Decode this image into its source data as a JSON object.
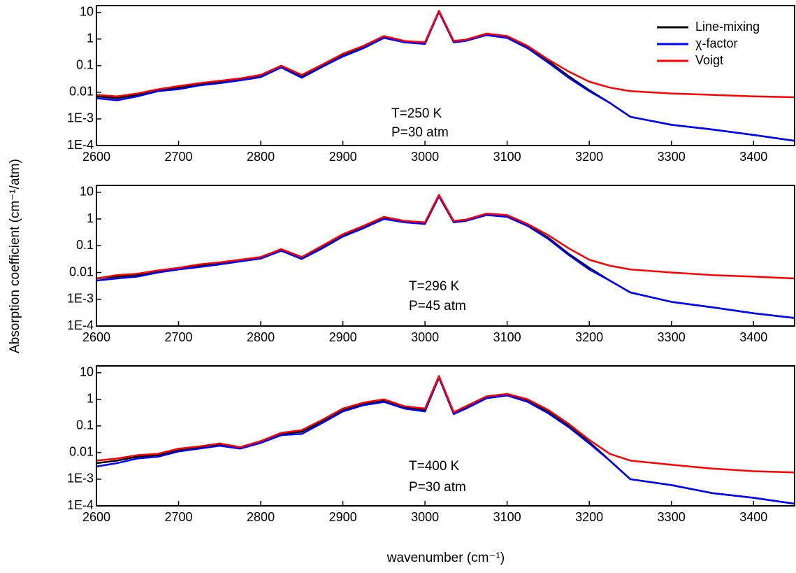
{
  "chart_data": [
    {
      "type": "line",
      "log_scale": true,
      "legend": "upper right",
      "ylabel": "Absorption coefficient (cm⁻¹/atm)",
      "annotations": [
        "T=250 K",
        "P=30 atm"
      ],
      "x": [
        2600,
        2625,
        2650,
        2675,
        2700,
        2725,
        2750,
        2775,
        2800,
        2825,
        2850,
        2875,
        2900,
        2925,
        2950,
        2975,
        3000,
        3017,
        3035,
        3050,
        3075,
        3100,
        3125,
        3150,
        3175,
        3200,
        3225,
        3250,
        3300,
        3350,
        3400,
        3450
      ],
      "xlim": [
        2600,
        3450
      ],
      "xticks": [
        2600,
        2700,
        2800,
        2900,
        3000,
        3100,
        3200,
        3300,
        3400
      ],
      "ylim": [
        0.0001,
        18
      ],
      "yticks": [
        {
          "value": 0.0001,
          "label": "1E-4"
        },
        {
          "value": 0.001,
          "label": "1E-3"
        },
        0.01,
        0.1,
        1,
        10
      ],
      "series": [
        {
          "name": "Line-mixing",
          "color": "#000000",
          "values": [
            0.007,
            0.006,
            0.008,
            0.012,
            0.015,
            0.02,
            0.025,
            0.03,
            0.04,
            0.09,
            0.04,
            0.1,
            0.25,
            0.5,
            1.2,
            0.8,
            0.7,
            11,
            0.8,
            0.9,
            1.5,
            1.2,
            0.5,
            0.15,
            0.04,
            0.012,
            0.004,
            0.0012,
            0.0006,
            0.0004,
            0.00025,
            0.00015
          ]
        },
        {
          "name": "χ-factor",
          "color": "#0000ff",
          "values": [
            0.006,
            0.005,
            0.007,
            0.011,
            0.013,
            0.018,
            0.022,
            0.028,
            0.037,
            0.085,
            0.035,
            0.09,
            0.22,
            0.45,
            1.1,
            0.75,
            0.65,
            10.5,
            0.75,
            0.85,
            1.4,
            1.1,
            0.45,
            0.13,
            0.035,
            0.011,
            0.004,
            0.0012,
            0.0006,
            0.0004,
            0.00025,
            0.00015
          ]
        },
        {
          "name": "Voigt",
          "color": "#ff0000",
          "values": [
            0.008,
            0.007,
            0.009,
            0.013,
            0.017,
            0.022,
            0.027,
            0.033,
            0.045,
            0.1,
            0.045,
            0.11,
            0.28,
            0.55,
            1.3,
            0.85,
            0.75,
            11.5,
            0.85,
            0.95,
            1.6,
            1.3,
            0.55,
            0.17,
            0.06,
            0.025,
            0.015,
            0.011,
            0.009,
            0.008,
            0.007,
            0.0065
          ]
        }
      ]
    },
    {
      "type": "line",
      "log_scale": true,
      "annotations": [
        "T=296 K",
        "P=45 atm"
      ],
      "x": [
        2600,
        2625,
        2650,
        2675,
        2700,
        2725,
        2750,
        2775,
        2800,
        2825,
        2850,
        2875,
        2900,
        2925,
        2950,
        2975,
        3000,
        3017,
        3035,
        3050,
        3075,
        3100,
        3125,
        3150,
        3175,
        3200,
        3225,
        3250,
        3300,
        3350,
        3400,
        3450
      ],
      "xlim": [
        2600,
        3450
      ],
      "xticks": [
        2600,
        2700,
        2800,
        2900,
        3000,
        3100,
        3200,
        3300,
        3400
      ],
      "ylim": [
        0.0001,
        18
      ],
      "yticks": [
        {
          "value": 0.0001,
          "label": "1E-4"
        },
        {
          "value": 0.001,
          "label": "1E-3"
        },
        0.01,
        0.1,
        1,
        10
      ],
      "series": [
        {
          "color": "#000000",
          "values": [
            0.006,
            0.007,
            0.008,
            0.011,
            0.014,
            0.018,
            0.022,
            0.028,
            0.035,
            0.07,
            0.035,
            0.09,
            0.25,
            0.5,
            1.1,
            0.8,
            0.7,
            7.5,
            0.8,
            0.9,
            1.5,
            1.3,
            0.6,
            0.2,
            0.05,
            0.015,
            0.005,
            0.0018,
            0.0008,
            0.0005,
            0.0003,
            0.0002
          ]
        },
        {
          "color": "#0000ff",
          "values": [
            0.005,
            0.006,
            0.007,
            0.01,
            0.013,
            0.016,
            0.02,
            0.026,
            0.033,
            0.065,
            0.032,
            0.08,
            0.22,
            0.45,
            1.0,
            0.75,
            0.65,
            7,
            0.75,
            0.85,
            1.4,
            1.2,
            0.55,
            0.18,
            0.045,
            0.013,
            0.005,
            0.0018,
            0.0008,
            0.0005,
            0.0003,
            0.0002
          ]
        },
        {
          "color": "#ff0000",
          "values": [
            0.006,
            0.008,
            0.009,
            0.012,
            0.015,
            0.02,
            0.024,
            0.03,
            0.038,
            0.075,
            0.038,
            0.1,
            0.27,
            0.55,
            1.2,
            0.85,
            0.75,
            8,
            0.85,
            0.95,
            1.6,
            1.4,
            0.65,
            0.25,
            0.08,
            0.03,
            0.018,
            0.013,
            0.01,
            0.008,
            0.007,
            0.006
          ]
        }
      ]
    },
    {
      "type": "line",
      "log_scale": true,
      "xlabel": "wavenumber (cm⁻¹)",
      "annotations": [
        "T=400 K",
        "P=30 atm"
      ],
      "x": [
        2600,
        2625,
        2650,
        2675,
        2700,
        2725,
        2750,
        2775,
        2800,
        2825,
        2850,
        2875,
        2900,
        2925,
        2950,
        2975,
        3000,
        3017,
        3035,
        3050,
        3075,
        3100,
        3125,
        3150,
        3175,
        3200,
        3225,
        3250,
        3300,
        3350,
        3400,
        3450
      ],
      "xlim": [
        2600,
        3450
      ],
      "xticks": [
        2600,
        2700,
        2800,
        2900,
        3000,
        3100,
        3200,
        3300,
        3400
      ],
      "ylim": [
        0.0001,
        18
      ],
      "yticks": [
        {
          "value": 0.0001,
          "label": "1E-4"
        },
        {
          "value": 0.001,
          "label": "1E-3"
        },
        0.01,
        0.1,
        1,
        10
      ],
      "series": [
        {
          "color": "#000000",
          "values": [
            0.004,
            0.005,
            0.007,
            0.008,
            0.012,
            0.015,
            0.02,
            0.015,
            0.025,
            0.05,
            0.06,
            0.15,
            0.4,
            0.7,
            0.9,
            0.5,
            0.4,
            7,
            0.3,
            0.5,
            1.2,
            1.5,
            0.9,
            0.35,
            0.1,
            0.025,
            0.005,
            0.001,
            0.0006,
            0.0003,
            0.0002,
            0.00012
          ]
        },
        {
          "color": "#0000ff",
          "values": [
            0.003,
            0.004,
            0.006,
            0.007,
            0.011,
            0.014,
            0.018,
            0.014,
            0.023,
            0.045,
            0.05,
            0.13,
            0.35,
            0.6,
            0.8,
            0.45,
            0.35,
            6.5,
            0.28,
            0.45,
            1.1,
            1.4,
            0.8,
            0.3,
            0.09,
            0.022,
            0.005,
            0.001,
            0.0006,
            0.0003,
            0.0002,
            0.00012
          ]
        },
        {
          "color": "#ff0000",
          "values": [
            0.005,
            0.006,
            0.008,
            0.009,
            0.014,
            0.017,
            0.022,
            0.016,
            0.027,
            0.055,
            0.07,
            0.17,
            0.45,
            0.75,
            1.0,
            0.55,
            0.45,
            7.5,
            0.33,
            0.55,
            1.3,
            1.6,
            1.0,
            0.4,
            0.12,
            0.03,
            0.009,
            0.005,
            0.0035,
            0.0025,
            0.002,
            0.0018
          ]
        }
      ]
    }
  ]
}
